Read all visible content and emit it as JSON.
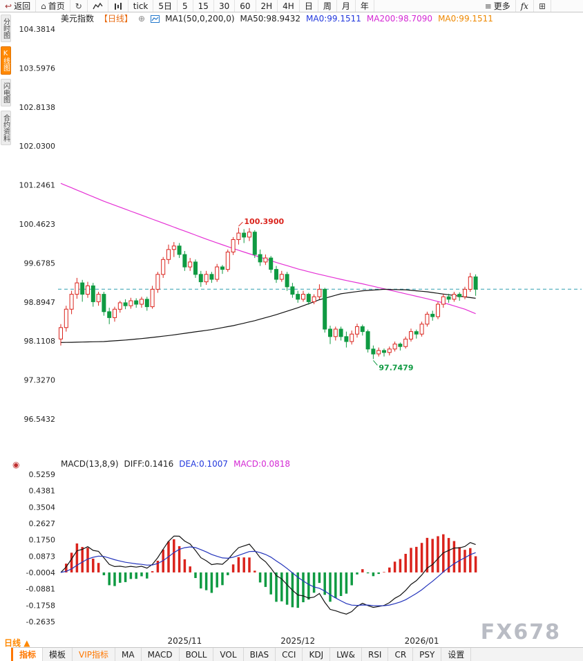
{
  "toolbar": {
    "items": [
      {
        "name": "back",
        "icon": "↩",
        "label": "返回"
      },
      {
        "name": "home",
        "icon": "⌂",
        "label": "首页"
      },
      {
        "name": "refresh",
        "icon": "↻",
        "label": ""
      },
      {
        "name": "line-chart",
        "svg": "line"
      },
      {
        "name": "bar-chart",
        "svg": "bars"
      },
      {
        "name": "tick",
        "label": "tick"
      },
      {
        "name": "5d",
        "label": "5日"
      },
      {
        "name": "m5",
        "label": "5"
      },
      {
        "name": "m15",
        "label": "15"
      },
      {
        "name": "m30",
        "label": "30"
      },
      {
        "name": "m60",
        "label": "60"
      },
      {
        "name": "h2",
        "label": "2H"
      },
      {
        "name": "h4",
        "label": "4H"
      },
      {
        "name": "day",
        "label": "日"
      },
      {
        "name": "week",
        "label": "周"
      },
      {
        "name": "month",
        "label": "月"
      },
      {
        "name": "year",
        "label": "年"
      },
      {
        "name": "more",
        "icon": "≡",
        "label": "更多"
      },
      {
        "name": "fx",
        "label": "fx"
      },
      {
        "name": "grid",
        "icon": "⊞",
        "label": ""
      }
    ]
  },
  "sidebar": {
    "items": [
      {
        "label": "分时图",
        "active": false
      },
      {
        "label": "K线图",
        "active": true
      },
      {
        "label": "闪电图",
        "active": false
      },
      {
        "label": "合约资料",
        "active": false
      }
    ]
  },
  "chart_header": {
    "segments": [
      {
        "name": "symbol-name",
        "text": "美元指数",
        "color": "#222222"
      },
      {
        "name": "period-tag",
        "text": "【日线】",
        "color": "#e86a10"
      },
      {
        "name": "add-indicator-icon",
        "text": "⊕",
        "color": "#888888",
        "interactable": true
      },
      {
        "name": "ma-chart-icon",
        "icon": "chart"
      },
      {
        "name": "ma-params",
        "text": "MA1(50,0,200,0)",
        "color": "#222222"
      },
      {
        "name": "ma50-value",
        "text": "MA50:98.9432",
        "color": "#222222"
      },
      {
        "name": "ma0-value-blue",
        "text": "MA0:99.1511",
        "color": "#2238dd"
      },
      {
        "name": "ma200-value",
        "text": "MA200:98.7090",
        "color": "#d428d4"
      },
      {
        "name": "ma0-value-orange",
        "text": "MA0:99.1511",
        "color": "#ee8800"
      }
    ]
  },
  "macd_header": {
    "gutter_icon": "◉",
    "segments": [
      {
        "name": "macd-params",
        "text": "MACD(13,8,9)",
        "color": "#222222"
      },
      {
        "name": "diff-value",
        "text": "DIFF:0.1416",
        "color": "#222222"
      },
      {
        "name": "dea-value",
        "text": "DEA:0.1007",
        "color": "#2238dd"
      },
      {
        "name": "macd-value",
        "text": "MACD:0.0818",
        "color": "#d428d4"
      }
    ]
  },
  "bottom_bar": {
    "period_label": "日线",
    "period_arrow": "▲",
    "tabs": [
      {
        "label": "指标",
        "active": true
      },
      {
        "label": "模板"
      },
      {
        "label": "VIP指标",
        "vip": true
      },
      {
        "label": "MA"
      },
      {
        "label": "MACD"
      },
      {
        "label": "BOLL"
      },
      {
        "label": "VOL"
      },
      {
        "label": "BIAS"
      },
      {
        "label": "CCI"
      },
      {
        "label": "KDJ"
      },
      {
        "label": "LW&"
      },
      {
        "label": "RSI"
      },
      {
        "label": "CR"
      },
      {
        "label": "PSY"
      },
      {
        "label": "设置"
      }
    ]
  },
  "watermark": "FX678",
  "chart_data": {
    "type": "candlestick+macd",
    "symbol": "美元指数",
    "period": "日线",
    "y_max": 104.3814,
    "y_min": 96.5432,
    "y_ticks": [
      "104.3814",
      "103.5976",
      "102.8138",
      "102.0300",
      "101.2461",
      "100.4623",
      "99.6785",
      "98.8947",
      "98.1108",
      "97.3270",
      "96.5432"
    ],
    "x_ticks": [
      {
        "index": 23,
        "label": "2025/11"
      },
      {
        "index": 44,
        "label": "2025/12"
      },
      {
        "index": 67,
        "label": "2026/01"
      }
    ],
    "last_price_line": 99.1511,
    "high_annotation": {
      "index": 33,
      "price": 100.39,
      "label": "100.3900"
    },
    "low_annotation": {
      "index": 58,
      "price": 97.7479,
      "label": "97.7479"
    },
    "candles": [
      [
        98.15,
        98.45,
        98.02,
        98.38
      ],
      [
        98.38,
        98.82,
        98.3,
        98.75
      ],
      [
        98.75,
        99.12,
        98.65,
        99.05
      ],
      [
        99.05,
        99.38,
        98.96,
        99.28
      ],
      [
        99.28,
        99.34,
        98.9,
        99.05
      ],
      [
        99.05,
        99.3,
        98.98,
        99.22
      ],
      [
        99.22,
        99.28,
        98.8,
        98.9
      ],
      [
        98.9,
        99.1,
        98.82,
        99.05
      ],
      [
        99.05,
        99.1,
        98.62,
        98.7
      ],
      [
        98.7,
        98.78,
        98.45,
        98.58
      ],
      [
        98.58,
        98.8,
        98.5,
        98.75
      ],
      [
        98.75,
        98.92,
        98.68,
        98.88
      ],
      [
        98.88,
        98.95,
        98.75,
        98.82
      ],
      [
        98.82,
        98.98,
        98.76,
        98.92
      ],
      [
        98.92,
        98.97,
        98.78,
        98.85
      ],
      [
        98.85,
        99.0,
        98.78,
        98.95
      ],
      [
        98.95,
        99.0,
        98.72,
        98.8
      ],
      [
        98.8,
        99.22,
        98.76,
        99.15
      ],
      [
        99.15,
        99.5,
        99.08,
        99.45
      ],
      [
        99.45,
        99.8,
        99.38,
        99.75
      ],
      [
        99.75,
        100.05,
        99.66,
        99.95
      ],
      [
        99.95,
        100.1,
        99.8,
        100.02
      ],
      [
        100.02,
        100.08,
        99.78,
        99.85
      ],
      [
        99.85,
        99.92,
        99.52,
        99.6
      ],
      [
        99.6,
        99.78,
        99.52,
        99.7
      ],
      [
        99.7,
        99.75,
        99.38,
        99.45
      ],
      [
        99.45,
        99.52,
        99.2,
        99.3
      ],
      [
        99.3,
        99.52,
        99.24,
        99.45
      ],
      [
        99.45,
        99.5,
        99.28,
        99.35
      ],
      [
        99.35,
        99.66,
        99.3,
        99.6
      ],
      [
        99.6,
        99.64,
        99.46,
        99.55
      ],
      [
        99.55,
        99.95,
        99.5,
        99.9
      ],
      [
        99.9,
        100.2,
        99.84,
        100.15
      ],
      [
        100.15,
        100.39,
        100.05,
        100.28
      ],
      [
        100.28,
        100.36,
        100.08,
        100.2
      ],
      [
        100.2,
        100.38,
        100.12,
        100.3
      ],
      [
        100.3,
        100.34,
        99.78,
        99.85
      ],
      [
        99.85,
        99.95,
        99.62,
        99.7
      ],
      [
        99.7,
        99.85,
        99.64,
        99.78
      ],
      [
        99.78,
        99.82,
        99.48,
        99.55
      ],
      [
        99.55,
        99.62,
        99.28,
        99.35
      ],
      [
        99.35,
        99.52,
        99.3,
        99.45
      ],
      [
        99.45,
        99.5,
        99.12,
        99.2
      ],
      [
        99.2,
        99.28,
        98.98,
        99.05
      ],
      [
        99.05,
        99.12,
        98.88,
        98.95
      ],
      [
        98.95,
        99.12,
        98.9,
        99.05
      ],
      [
        99.05,
        99.08,
        98.84,
        98.9
      ],
      [
        98.9,
        99.05,
        98.85,
        99.0
      ],
      [
        99.0,
        99.25,
        98.95,
        99.15
      ],
      [
        99.15,
        99.18,
        98.28,
        98.35
      ],
      [
        98.35,
        98.42,
        98.05,
        98.2
      ],
      [
        98.2,
        98.4,
        98.12,
        98.35
      ],
      [
        98.35,
        98.4,
        98.12,
        98.2
      ],
      [
        98.2,
        98.3,
        97.98,
        98.1
      ],
      [
        98.1,
        98.32,
        98.04,
        98.25
      ],
      [
        98.25,
        98.46,
        98.18,
        98.4
      ],
      [
        98.4,
        98.44,
        98.22,
        98.3
      ],
      [
        98.3,
        98.34,
        97.88,
        97.95
      ],
      [
        97.95,
        98.02,
        97.7479,
        97.85
      ],
      [
        97.85,
        97.98,
        97.8,
        97.92
      ],
      [
        97.92,
        97.96,
        97.8,
        97.88
      ],
      [
        97.88,
        98.0,
        97.82,
        97.95
      ],
      [
        97.95,
        98.1,
        97.9,
        98.05
      ],
      [
        98.05,
        98.08,
        97.92,
        98.0
      ],
      [
        98.0,
        98.2,
        97.96,
        98.15
      ],
      [
        98.15,
        98.36,
        98.1,
        98.3
      ],
      [
        98.3,
        98.34,
        98.16,
        98.25
      ],
      [
        98.25,
        98.5,
        98.2,
        98.45
      ],
      [
        98.45,
        98.7,
        98.4,
        98.65
      ],
      [
        98.65,
        98.72,
        98.52,
        98.6
      ],
      [
        98.6,
        98.9,
        98.55,
        98.85
      ],
      [
        98.85,
        99.05,
        98.78,
        99.0
      ],
      [
        99.0,
        99.06,
        98.88,
        98.95
      ],
      [
        98.95,
        99.1,
        98.9,
        99.05
      ],
      [
        99.05,
        99.09,
        98.92,
        99.0
      ],
      [
        99.0,
        99.2,
        98.95,
        99.15
      ],
      [
        99.15,
        99.48,
        99.1,
        99.4
      ],
      [
        99.4,
        99.45,
        99.02,
        99.15
      ]
    ],
    "ma200_points": [
      [
        0,
        101.28
      ],
      [
        4,
        101.1
      ],
      [
        8,
        100.92
      ],
      [
        12,
        100.76
      ],
      [
        16,
        100.6
      ],
      [
        20,
        100.44
      ],
      [
        24,
        100.28
      ],
      [
        28,
        100.12
      ],
      [
        32,
        99.97
      ],
      [
        36,
        99.83
      ],
      [
        40,
        99.69
      ],
      [
        44,
        99.56
      ],
      [
        48,
        99.45
      ],
      [
        52,
        99.35
      ],
      [
        56,
        99.26
      ],
      [
        60,
        99.16
      ],
      [
        64,
        99.06
      ],
      [
        68,
        98.96
      ],
      [
        72,
        98.85
      ],
      [
        75,
        98.75
      ],
      [
        77,
        98.66
      ]
    ],
    "ma50_points": [
      [
        0,
        98.08
      ],
      [
        4,
        98.09
      ],
      [
        8,
        98.1
      ],
      [
        12,
        98.13
      ],
      [
        16,
        98.17
      ],
      [
        20,
        98.22
      ],
      [
        24,
        98.28
      ],
      [
        28,
        98.34
      ],
      [
        32,
        98.42
      ],
      [
        36,
        98.52
      ],
      [
        40,
        98.64
      ],
      [
        44,
        98.78
      ],
      [
        48,
        98.94
      ],
      [
        52,
        99.06
      ],
      [
        56,
        99.12
      ],
      [
        60,
        99.15
      ],
      [
        64,
        99.14
      ],
      [
        68,
        99.1
      ],
      [
        72,
        99.04
      ],
      [
        77,
        98.97
      ]
    ],
    "macd": {
      "params": [
        13,
        8,
        9
      ],
      "fast": 8,
      "slow": 13,
      "signal": 9,
      "diff": 0.1416,
      "dea": 0.1007,
      "macd": 0.0818,
      "y_max": 0.5259,
      "y_min": -0.2635,
      "y_ticks": [
        "0.5259",
        "0.4381",
        "0.3504",
        "0.2627",
        "0.1750",
        "0.0873",
        "-0.0004",
        "-0.0881",
        "-0.1758",
        "-0.2635"
      ]
    },
    "colors": {
      "up": "#da231c",
      "down": "#0f9a42",
      "ma200": "#e530d5",
      "ma50": "#111111",
      "diff": "#111111",
      "dea": "#2233bb",
      "last_price": "#2e9fb0",
      "high_label": "#da231c",
      "low_label": "#0f9a42"
    }
  }
}
